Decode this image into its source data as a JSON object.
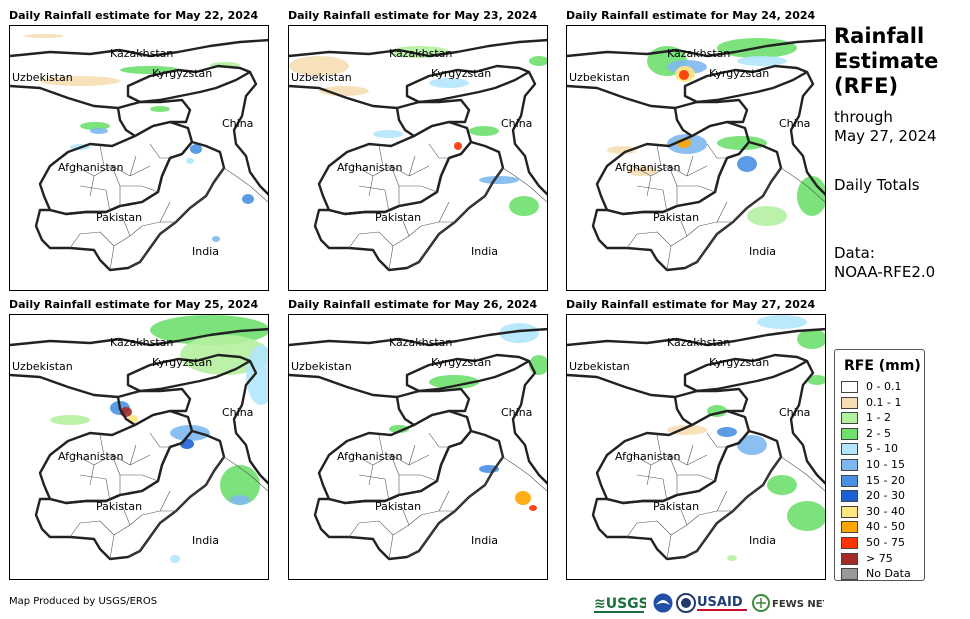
{
  "panels": [
    {
      "title": "Daily Rainfall estimate for May 22, 2024"
    },
    {
      "title": "Daily Rainfall estimate for May 23, 2024"
    },
    {
      "title": "Daily Rainfall estimate for May 24, 2024"
    },
    {
      "title": "Daily Rainfall estimate for May 25, 2024"
    },
    {
      "title": "Daily Rainfall estimate for May 26, 2024"
    },
    {
      "title": "Daily Rainfall estimate for May 27, 2024"
    }
  ],
  "map_labels": {
    "kazakhstan": "Kazakhstan",
    "uzbekistan": "Uzbekistan",
    "kyrgyzstan": "Kyrgyzstan",
    "china": "China",
    "afghanistan": "Afghanistan",
    "pakistan": "Pakistan",
    "india": "India"
  },
  "side": {
    "title_line1": "Rainfall",
    "title_line2": "Estimate",
    "title_line3": "(RFE)",
    "through": "through",
    "date": "May 27, 2024",
    "totals": "Daily Totals",
    "data_label": "Data:",
    "data_source": "NOAA-RFE2.0"
  },
  "legend": {
    "title": "RFE (mm)",
    "items": [
      {
        "label": "0 - 0.1",
        "color": "#ffffff"
      },
      {
        "label": "0.1 - 1",
        "color": "#f5deb3"
      },
      {
        "label": "1 - 2",
        "color": "#b4f0a0"
      },
      {
        "label": "2 - 5",
        "color": "#6ee06e"
      },
      {
        "label": "5 - 10",
        "color": "#b3e5fc"
      },
      {
        "label": "10 - 15",
        "color": "#7fb8f0"
      },
      {
        "label": "15 - 20",
        "color": "#4a90e2"
      },
      {
        "label": "20 - 30",
        "color": "#1f5fd6"
      },
      {
        "label": "30 - 40",
        "color": "#ffe680"
      },
      {
        "label": "40 - 50",
        "color": "#ffa500"
      },
      {
        "label": "50 - 75",
        "color": "#ff3300"
      },
      {
        "label": "> 75",
        "color": "#a52a2a"
      },
      {
        "label": "No Data",
        "color": "#999999"
      }
    ]
  },
  "footer": {
    "credit": "Map Produced by USGS/EROS",
    "logos": [
      "USGS",
      "NOAA",
      "USAID",
      "FEWS NET"
    ],
    "usgs_text": "≋USGS",
    "usaid_text": "USAID",
    "fews_text": "FEWS NET"
  }
}
